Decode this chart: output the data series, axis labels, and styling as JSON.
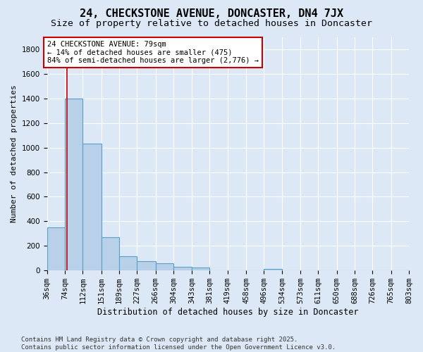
{
  "title": "24, CHECKSTONE AVENUE, DONCASTER, DN4 7JX",
  "subtitle": "Size of property relative to detached houses in Doncaster",
  "xlabel": "Distribution of detached houses by size in Doncaster",
  "ylabel": "Number of detached properties",
  "background_color": "#dce8f5",
  "plot_bg_color": "#dce8f5",
  "bar_color": "#b8d0e8",
  "bar_edge_color": "#5a9fc8",
  "bin_edges": [
    36,
    74,
    112,
    151,
    189,
    227,
    266,
    304,
    343,
    381,
    419,
    458,
    496,
    534,
    573,
    611,
    650,
    688,
    726,
    765,
    803
  ],
  "bin_labels": [
    "36sqm",
    "74sqm",
    "112sqm",
    "151sqm",
    "189sqm",
    "227sqm",
    "266sqm",
    "304sqm",
    "343sqm",
    "381sqm",
    "419sqm",
    "458sqm",
    "496sqm",
    "534sqm",
    "573sqm",
    "611sqm",
    "650sqm",
    "688sqm",
    "726sqm",
    "765sqm",
    "803sqm"
  ],
  "bar_heights": [
    350,
    1400,
    1030,
    270,
    115,
    75,
    60,
    30,
    25,
    0,
    0,
    0,
    10,
    0,
    0,
    0,
    0,
    0,
    0,
    0
  ],
  "property_size": 79,
  "vline_color": "#cc0000",
  "annotation_line1": "24 CHECKSTONE AVENUE: 79sqm",
  "annotation_line2": "← 14% of detached houses are smaller (475)",
  "annotation_line3": "84% of semi-detached houses are larger (2,776) →",
  "annotation_box_color": "#ffffff",
  "annotation_box_edge": "#cc0000",
  "ylim": [
    0,
    1900
  ],
  "yticks": [
    0,
    200,
    400,
    600,
    800,
    1000,
    1200,
    1400,
    1600,
    1800
  ],
  "footnote": "Contains HM Land Registry data © Crown copyright and database right 2025.\nContains public sector information licensed under the Open Government Licence v3.0.",
  "title_fontsize": 11,
  "subtitle_fontsize": 9.5,
  "xlabel_fontsize": 8.5,
  "ylabel_fontsize": 8,
  "tick_fontsize": 7.5,
  "annotation_fontsize": 7.5,
  "footnote_fontsize": 6.5
}
